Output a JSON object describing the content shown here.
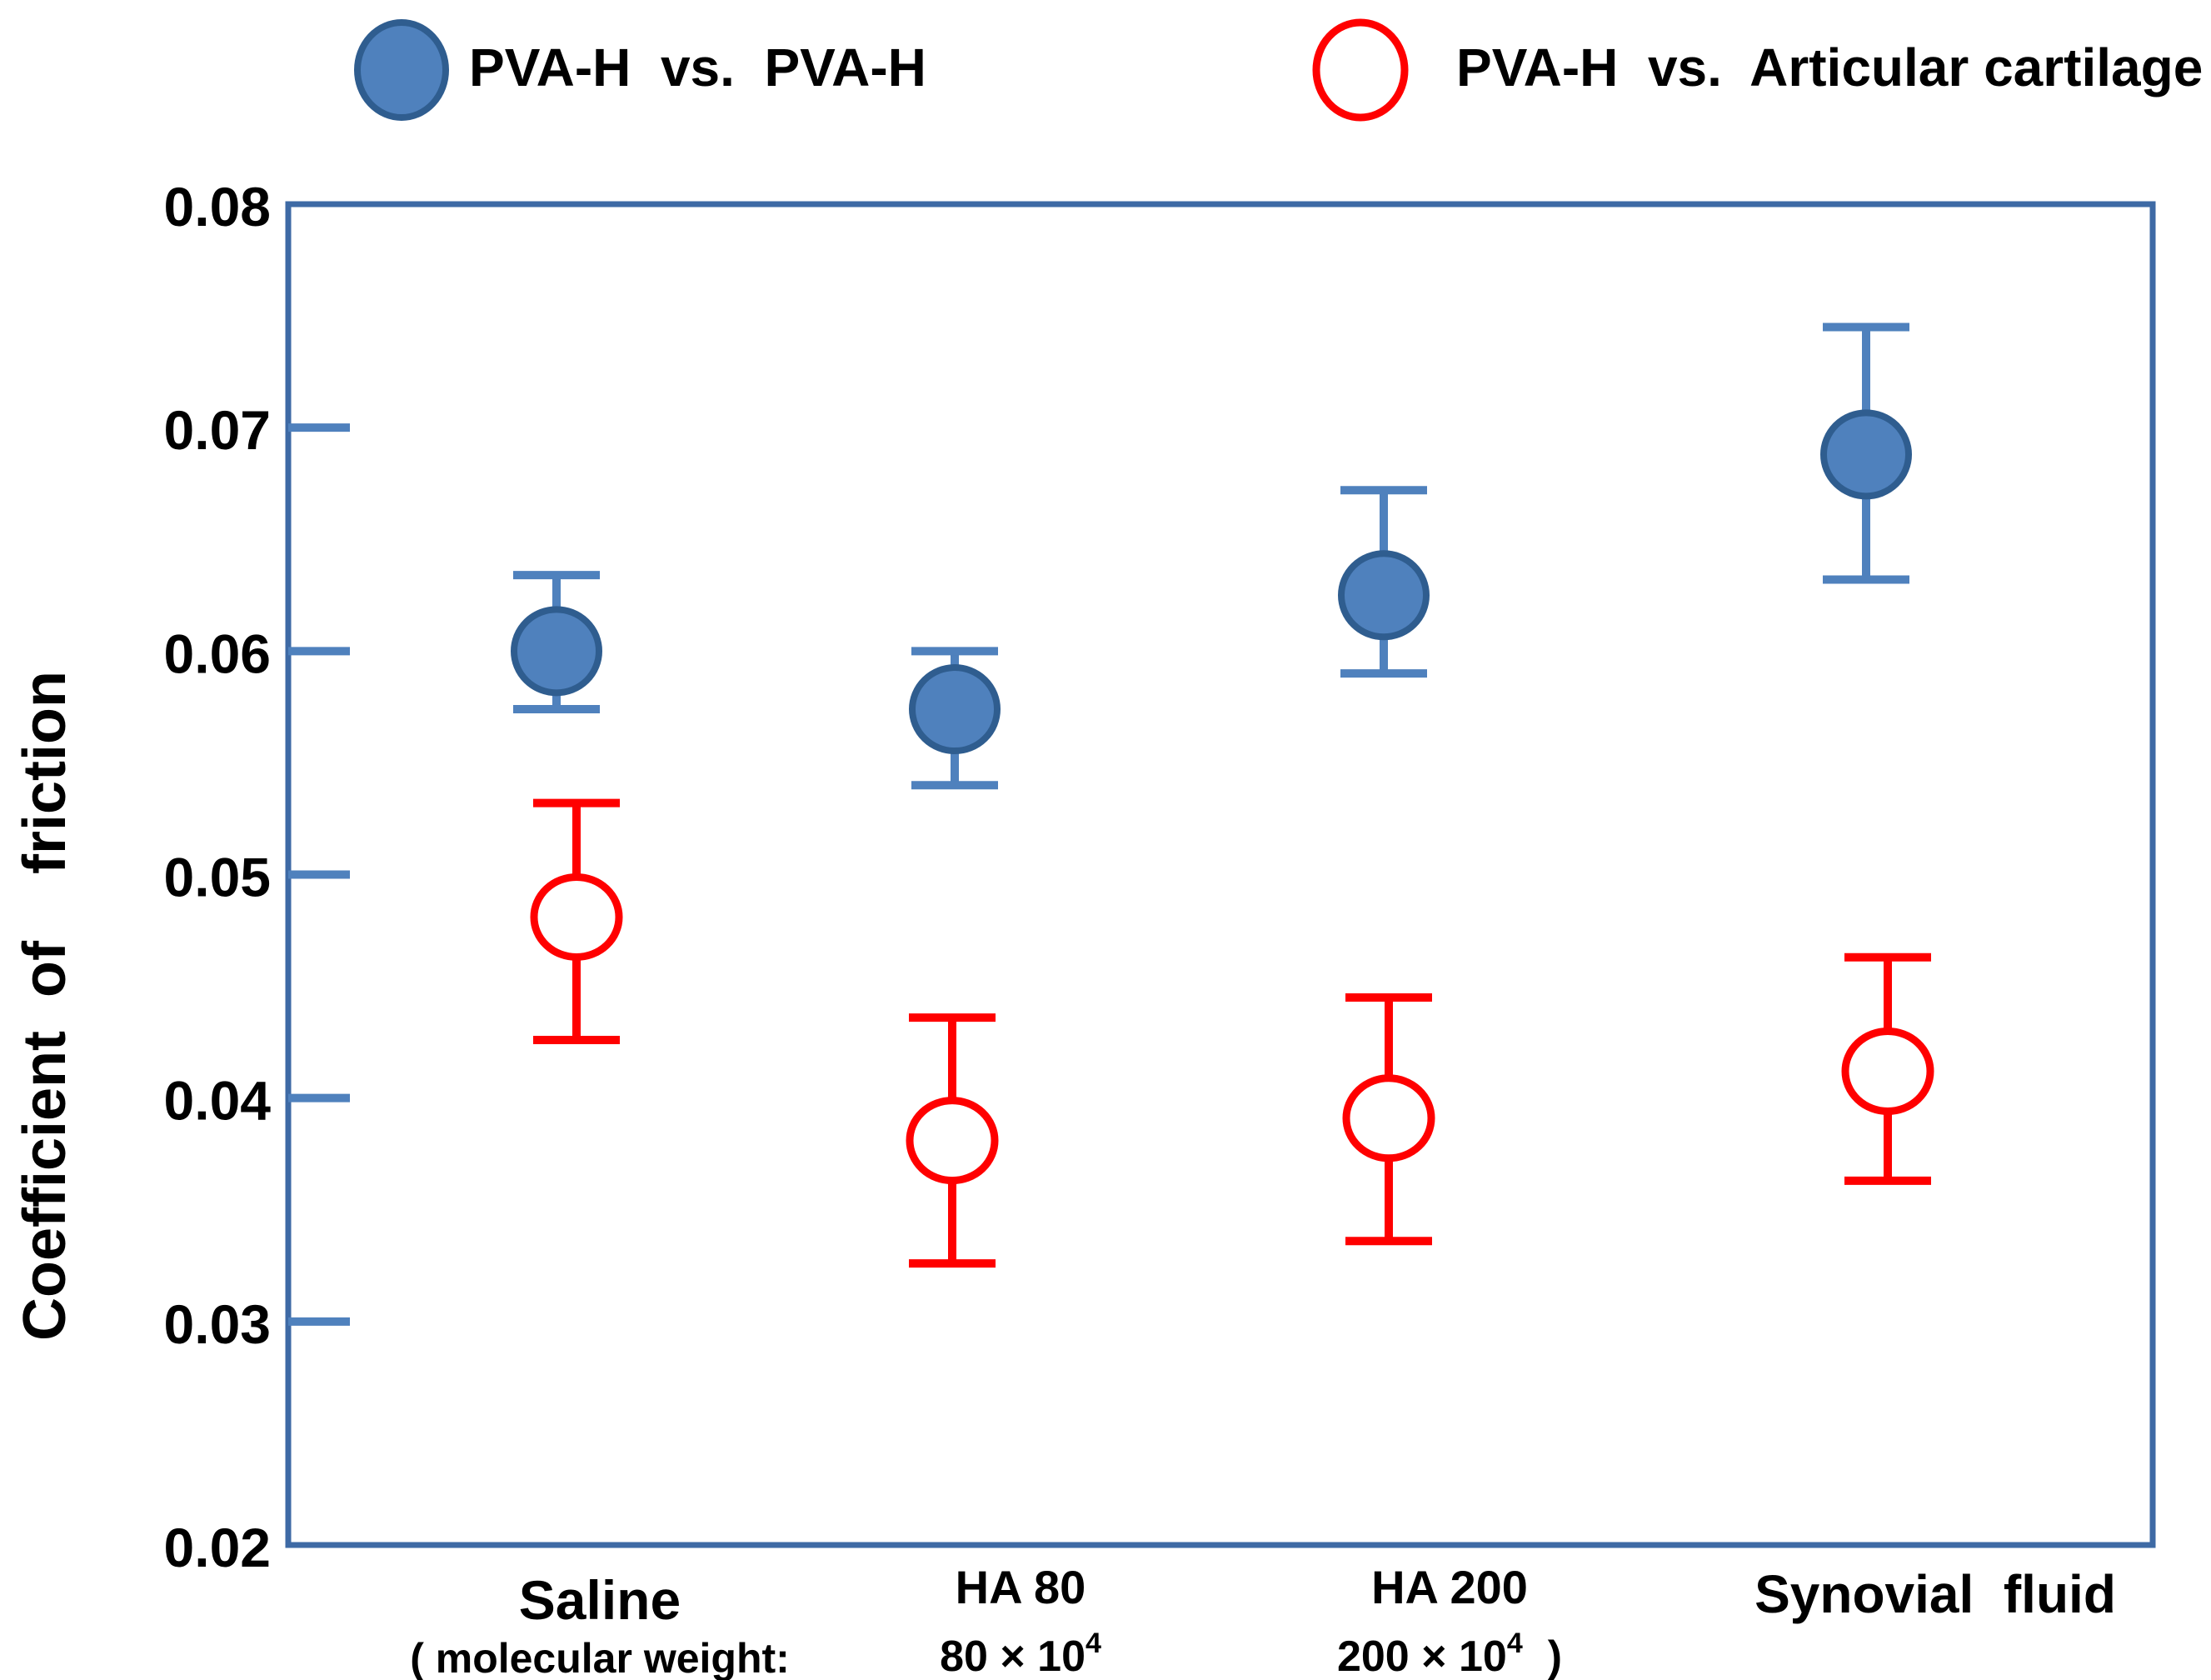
{
  "chart_data": {
    "type": "scatter",
    "title": "",
    "xlabel": "",
    "ylabel": "Coefficient  of    friction",
    "ylim": [
      0.02,
      0.08
    ],
    "yticks": [
      "0.08",
      "0.07",
      "0.06",
      "0.05",
      "0.04",
      "0.03",
      "0.02"
    ],
    "grid": false,
    "legend_position": "top",
    "categories": [
      {
        "name": "Saline",
        "sub": "( molecular weight:"
      },
      {
        "name": "HA 80",
        "sub_value": "80",
        "sub_exp": "4",
        "sub_suffix": ""
      },
      {
        "name": "HA 200",
        "sub_value": "200",
        "sub_exp": "4",
        "sub_suffix": ")"
      },
      {
        "name": "Synovial  fluid"
      }
    ],
    "molecular_weight_unit": "× 10",
    "series": [
      {
        "name": "PVA-H  vs.  PVA-H",
        "marker": "filled-circle",
        "color": "#4f81bd",
        "values": [
          0.06,
          0.0574,
          0.0625,
          0.0688
        ],
        "err_low": [
          0.0574,
          0.054,
          0.059,
          0.0632
        ],
        "err_high": [
          0.0634,
          0.06,
          0.0672,
          0.0745
        ]
      },
      {
        "name": "PVA-H  vs.  Articular cartilage",
        "marker": "open-circle",
        "color": "#ff0000",
        "values": [
          0.0481,
          0.0381,
          0.0391,
          0.0412
        ],
        "err_low": [
          0.0426,
          0.0326,
          0.0336,
          0.0363
        ],
        "err_high": [
          0.0532,
          0.0436,
          0.0445,
          0.0463
        ]
      }
    ]
  }
}
